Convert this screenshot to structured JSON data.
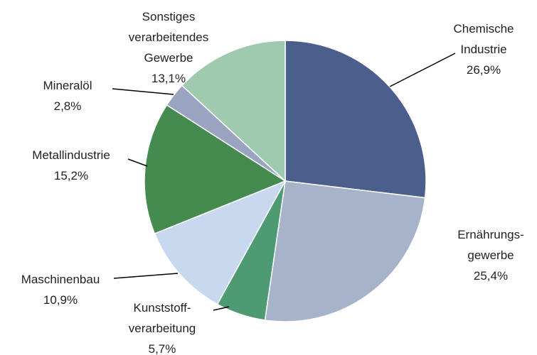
{
  "chart_data": {
    "type": "pie",
    "categories": [
      "Chemische\nIndustrie",
      "Ernährungs-\ngewerbe",
      "Kunststoff-\nverarbeitung",
      "Maschinenbau",
      "Metallindustrie",
      "Mineralöl",
      "Sonstiges\nverarbeitendes\nGewerbe"
    ],
    "values": [
      26.9,
      25.4,
      5.7,
      10.9,
      15.2,
      2.8,
      13.1
    ],
    "value_labels": [
      "26,9%",
      "25,4%",
      "5,7%",
      "10,9%",
      "15,2%",
      "2,8%",
      "13,1%"
    ],
    "colors": [
      "#4a5f8c",
      "#a7b3c8",
      "#4e9a73",
      "#c8d9ef",
      "#458b4f",
      "#9aa3c0",
      "#9fcab0"
    ]
  }
}
